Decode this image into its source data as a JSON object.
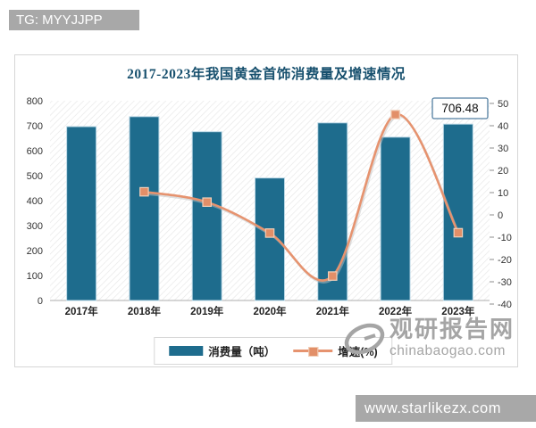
{
  "overlays": {
    "tg_banner": "TG: MYYJJPP",
    "site_banner": "www.starlikezx.com"
  },
  "watermark": {
    "name": "观研报告网",
    "domain": "chinabaogao.com"
  },
  "chart_data": {
    "type": "bar",
    "combo": "bar+line",
    "title": "2017-2023年我国黄金首饰消费量及增速情况",
    "categories": [
      "2017年",
      "2018年",
      "2019年",
      "2020年",
      "2021年",
      "2022年",
      "2023年"
    ],
    "series": [
      {
        "name": "消费量（吨）",
        "type": "bar",
        "axis": "left",
        "values": [
          696.5,
          736.29,
          676.23,
          490.58,
          711.29,
          654.32,
          706.48
        ]
      },
      {
        "name": "增速(%)",
        "type": "line",
        "axis": "right",
        "values": [
          null,
          10.35,
          5.71,
          -8.16,
          -27.45,
          44.99,
          -8.01
        ]
      }
    ],
    "left_axis": {
      "min": 0,
      "max": 800,
      "step": 100
    },
    "right_axis": {
      "min": -40,
      "max": 50,
      "step": 10
    },
    "data_label": {
      "text": "706.48",
      "category_index": 6
    },
    "legend_position": "bottom",
    "grid": false,
    "plot_background": "diagonal-hatch"
  },
  "colors": {
    "title": "#17506e",
    "bar": "#1e6c8d",
    "bar_stroke": "#bcd8e6",
    "line": "#e6936f",
    "line_shadow": "#bfbfbf",
    "marker_fill": "#e28f68",
    "marker_stroke": "#f2cfb8",
    "axis_text": "#333333",
    "baseline": "#adadad",
    "hatch_line": "#e7e7e7",
    "banner_bg": "#a8a8a8",
    "watermark": "#a5a5a5",
    "card_border": "#d6d6d6",
    "data_label_border": "#527ea0"
  }
}
